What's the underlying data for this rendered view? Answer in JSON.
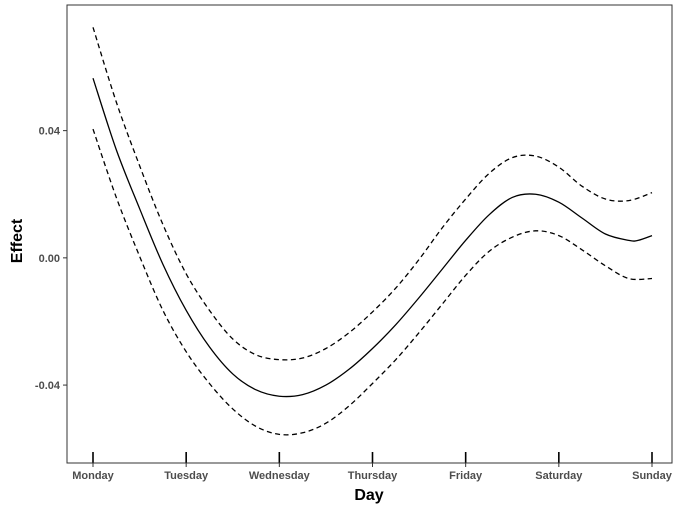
{
  "chart_data": {
    "type": "line",
    "title": "",
    "xlabel": "Day",
    "ylabel": "Effect",
    "x_categories": [
      "Monday",
      "Tuesday",
      "Wednesday",
      "Thursday",
      "Friday",
      "Saturday",
      "Sunday"
    ],
    "x_range": [
      0,
      6
    ],
    "ylim": [
      -0.0645,
      0.0795
    ],
    "y_ticks": [
      -0.04,
      0.0,
      0.04
    ],
    "y_tick_labels": [
      "-0.04",
      "0.00",
      "0.04"
    ],
    "grid": false,
    "legend": "none",
    "series": [
      {
        "style": "solid",
        "x": [
          0,
          0.25,
          0.5,
          0.75,
          1.0,
          1.25,
          1.5,
          1.75,
          2.0,
          2.25,
          2.5,
          2.75,
          3.0,
          3.25,
          3.5,
          3.75,
          4.0,
          4.25,
          4.5,
          4.75,
          5.0,
          5.25,
          5.5,
          5.75,
          5.85,
          6.0
        ],
        "y": [
          0.0565,
          0.034,
          0.0155,
          -0.002,
          -0.0165,
          -0.028,
          -0.0365,
          -0.0415,
          -0.0435,
          -0.043,
          -0.04,
          -0.035,
          -0.0285,
          -0.021,
          -0.0125,
          -0.0035,
          0.0055,
          0.0135,
          0.019,
          0.02,
          0.0175,
          0.0125,
          0.0075,
          0.0055,
          0.0055,
          0.007
        ]
      },
      {
        "style": "dashed",
        "x": [
          0,
          0.25,
          0.5,
          0.75,
          1.0,
          1.25,
          1.5,
          1.75,
          2.0,
          2.25,
          2.5,
          2.75,
          3.0,
          3.25,
          3.5,
          3.75,
          4.0,
          4.25,
          4.5,
          4.75,
          5.0,
          5.25,
          5.5,
          5.75,
          6.0
        ],
        "y": [
          0.0725,
          0.049,
          0.029,
          0.0105,
          -0.005,
          -0.0165,
          -0.0255,
          -0.0305,
          -0.032,
          -0.0315,
          -0.0285,
          -0.0235,
          -0.017,
          -0.0095,
          -0.0005,
          0.0095,
          0.0185,
          0.0265,
          0.0315,
          0.032,
          0.0285,
          0.0225,
          0.0185,
          0.018,
          0.0205
        ]
      },
      {
        "style": "dashed",
        "x": [
          0,
          0.25,
          0.5,
          0.75,
          1.0,
          1.25,
          1.5,
          1.75,
          2.0,
          2.25,
          2.5,
          2.75,
          3.0,
          3.25,
          3.5,
          3.75,
          4.0,
          4.25,
          4.5,
          4.75,
          5.0,
          5.25,
          5.5,
          5.75,
          6.0
        ],
        "y": [
          0.0405,
          0.019,
          0.0005,
          -0.0165,
          -0.0295,
          -0.0395,
          -0.0475,
          -0.053,
          -0.0555,
          -0.055,
          -0.052,
          -0.0465,
          -0.0395,
          -0.032,
          -0.0235,
          -0.0145,
          -0.0055,
          0.002,
          0.0065,
          0.0085,
          0.007,
          0.0025,
          -0.0025,
          -0.0065,
          -0.0065
        ]
      }
    ]
  }
}
